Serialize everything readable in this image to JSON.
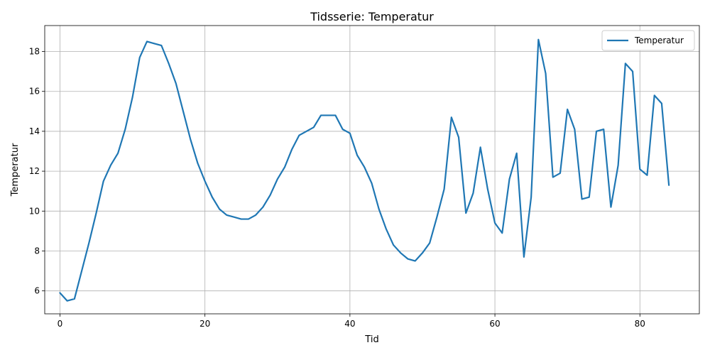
{
  "chart_data": {
    "type": "line",
    "title": "Tidsserie: Temperatur",
    "xlabel": "Tid",
    "ylabel": "Temperatur",
    "xlim": [
      -2.1,
      88.2
    ],
    "ylim": [
      4.85,
      19.3
    ],
    "xticks": [
      0,
      20,
      40,
      60,
      80
    ],
    "yticks": [
      6,
      8,
      10,
      12,
      14,
      16,
      18
    ],
    "grid": true,
    "legend": {
      "position": "top-right",
      "entries": [
        "Temperatur"
      ]
    },
    "series": [
      {
        "name": "Temperatur",
        "color": "#1f77b4",
        "x": [
          0,
          1,
          2,
          3,
          4,
          5,
          6,
          7,
          8,
          9,
          10,
          11,
          12,
          13,
          14,
          15,
          16,
          17,
          18,
          19,
          20,
          21,
          22,
          23,
          24,
          25,
          26,
          27,
          28,
          29,
          30,
          31,
          32,
          33,
          34,
          35,
          36,
          37,
          38,
          39,
          40,
          41,
          42,
          43,
          44,
          45,
          46,
          47,
          48,
          49,
          50,
          51,
          52,
          53,
          54,
          55,
          56,
          57,
          58,
          59,
          60,
          61,
          62,
          63,
          64,
          65,
          66,
          67,
          68,
          69,
          70,
          71,
          72,
          73,
          74,
          75,
          76,
          77,
          78,
          79,
          80,
          81,
          82,
          83,
          84
        ],
        "values": [
          5.9,
          5.5,
          5.6,
          7.0,
          8.4,
          9.9,
          11.5,
          12.3,
          12.9,
          14.1,
          15.7,
          17.7,
          18.5,
          18.4,
          18.3,
          17.4,
          16.4,
          15.0,
          13.6,
          12.4,
          11.5,
          10.7,
          10.1,
          9.8,
          9.7,
          9.6,
          9.6,
          9.8,
          10.2,
          10.8,
          11.6,
          12.2,
          13.1,
          13.8,
          14.0,
          14.2,
          14.8,
          14.8,
          14.8,
          14.1,
          13.9,
          12.8,
          12.2,
          11.4,
          10.1,
          9.1,
          8.3,
          7.9,
          7.6,
          7.5,
          7.9,
          8.4,
          9.7,
          11.1,
          14.7,
          13.7,
          9.9,
          10.9,
          13.2,
          11.1,
          9.4,
          8.9,
          11.6,
          12.9,
          7.7,
          10.7,
          18.6,
          16.9,
          11.7,
          11.9,
          15.1,
          14.1,
          10.6,
          10.7,
          14.0,
          14.1,
          10.2,
          12.3,
          17.4,
          17.0,
          12.1,
          11.8,
          15.8,
          15.4,
          11.3
        ]
      }
    ]
  }
}
